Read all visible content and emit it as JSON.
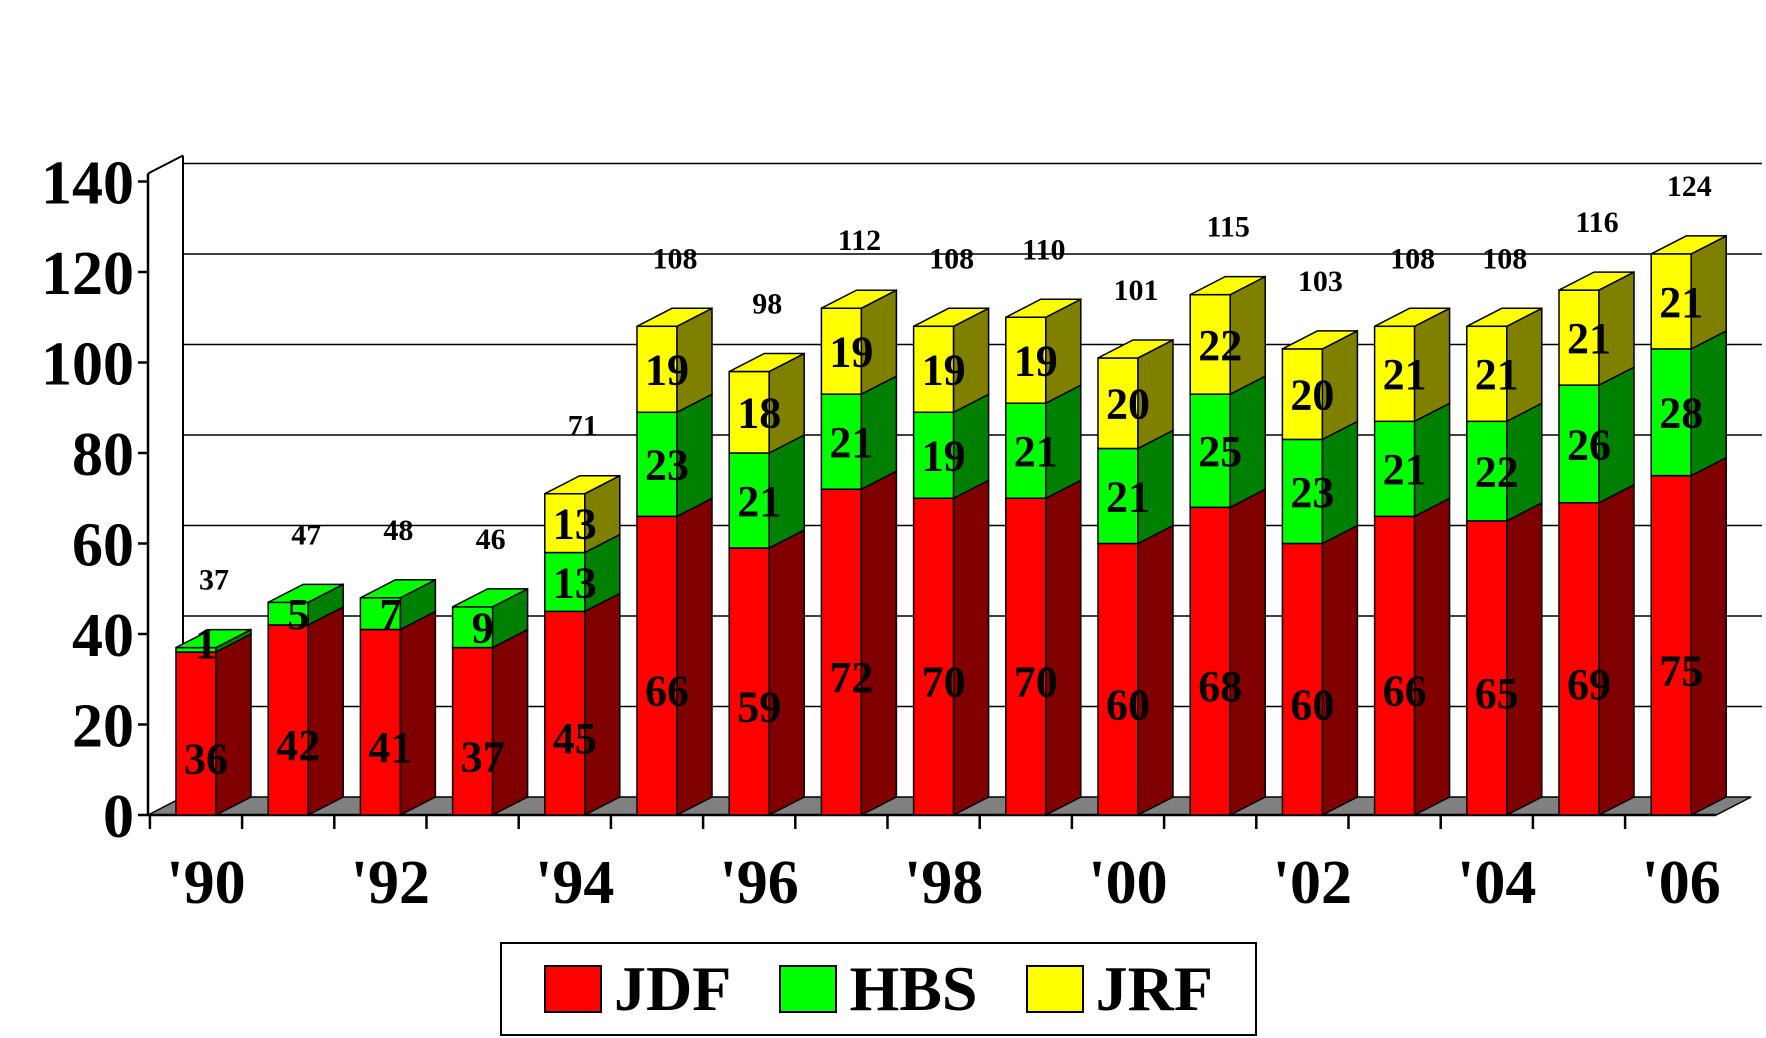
{
  "chart_data": {
    "type": "bar",
    "stacked": true,
    "three_d": true,
    "categories": [
      "'90",
      "'91",
      "'92",
      "'93",
      "'94",
      "'95",
      "'96",
      "'97",
      "'98",
      "'99",
      "'00",
      "'01",
      "'02",
      "'03",
      "'04",
      "'05",
      "'06"
    ],
    "x_tick_labels": [
      "'90",
      "'92",
      "'94",
      "'96",
      "'98",
      "'00",
      "'02",
      "'04",
      "'06"
    ],
    "series": [
      {
        "name": "JDF",
        "color": "#ff0000",
        "side_color": "#800000",
        "values": [
          36,
          42,
          41,
          37,
          45,
          66,
          59,
          72,
          70,
          70,
          60,
          68,
          60,
          66,
          65,
          69,
          75
        ]
      },
      {
        "name": "HBS",
        "color": "#00ff00",
        "side_color": "#008000",
        "values": [
          1,
          5,
          7,
          9,
          13,
          23,
          21,
          21,
          19,
          21,
          21,
          25,
          23,
          21,
          22,
          26,
          28
        ]
      },
      {
        "name": "JRF",
        "color": "#ffff00",
        "side_color": "#808000",
        "values": [
          0,
          0,
          0,
          0,
          13,
          19,
          18,
          19,
          19,
          19,
          20,
          22,
          20,
          21,
          21,
          21,
          21
        ]
      }
    ],
    "totals": [
      37,
      47,
      48,
      46,
      71,
      108,
      98,
      112,
      108,
      110,
      101,
      115,
      103,
      108,
      108,
      116,
      124
    ],
    "ylim": [
      0,
      140
    ],
    "yticks": [
      0,
      20,
      40,
      60,
      80,
      100,
      120,
      140
    ],
    "grid": true,
    "legend_position": "bottom",
    "title": "",
    "xlabel": "",
    "ylabel": ""
  }
}
